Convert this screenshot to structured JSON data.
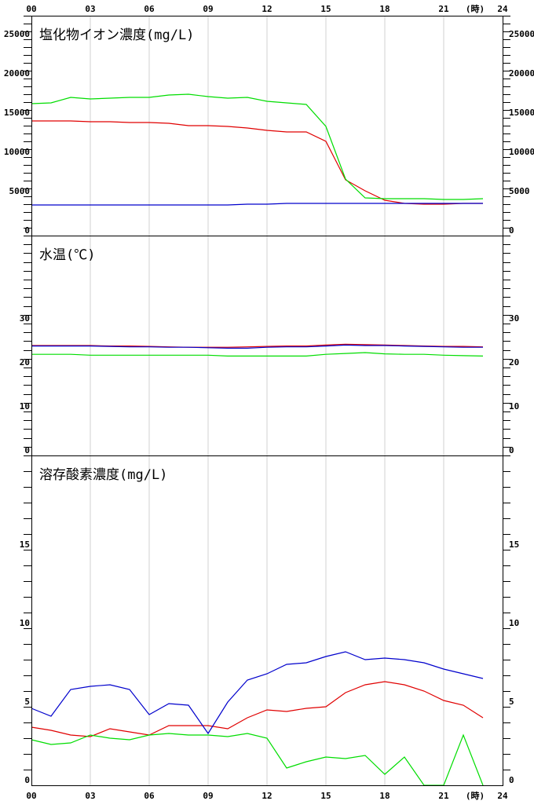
{
  "x_axis": {
    "ticks": [
      "00",
      "03",
      "06",
      "09",
      "12",
      "15",
      "18",
      "21",
      "24"
    ],
    "unit": "(時)"
  },
  "colors": {
    "red": "#e00000",
    "green": "#00dd00",
    "blue": "#0000cc",
    "grid": "#d0d0d0"
  },
  "chart_data": [
    {
      "type": "line",
      "title": "塩化物イオン濃度(mg/L)",
      "xlabel": "(時)",
      "ylim": [
        0,
        28000
      ],
      "yticks": [
        0,
        5000,
        10000,
        15000,
        20000,
        25000
      ],
      "x": [
        0,
        1,
        2,
        3,
        4,
        5,
        6,
        7,
        8,
        9,
        10,
        11,
        12,
        13,
        14,
        15,
        16,
        17,
        18,
        19,
        20,
        21,
        22,
        23
      ],
      "series": [
        {
          "color": "red",
          "values": [
            14600,
            14600,
            14600,
            14500,
            14500,
            14400,
            14400,
            14300,
            14000,
            14000,
            13900,
            13700,
            13400,
            13200,
            13200,
            12000,
            7100,
            5700,
            4500,
            4100,
            4000,
            4000,
            4100,
            4100
          ]
        },
        {
          "color": "green",
          "values": [
            16800,
            16900,
            17600,
            17400,
            17500,
            17600,
            17600,
            17900,
            18000,
            17700,
            17500,
            17600,
            17100,
            16900,
            16700,
            13900,
            7200,
            4800,
            4700,
            4700,
            4700,
            4600,
            4600,
            4700
          ]
        },
        {
          "color": "blue",
          "values": [
            3900,
            3900,
            3900,
            3900,
            3900,
            3900,
            3900,
            3900,
            3900,
            3900,
            3900,
            4000,
            4000,
            4100,
            4100,
            4100,
            4100,
            4100,
            4100,
            4100,
            4100,
            4100,
            4100,
            4100
          ]
        }
      ]
    },
    {
      "type": "line",
      "title": "水温(℃)",
      "xlabel": "(時)",
      "ylim": [
        0,
        50
      ],
      "yticks": [
        0,
        10,
        20,
        30
      ],
      "x": [
        0,
        1,
        2,
        3,
        4,
        5,
        6,
        7,
        8,
        9,
        10,
        11,
        12,
        13,
        14,
        15,
        16,
        17,
        18,
        19,
        20,
        21,
        22,
        23
      ],
      "series": [
        {
          "color": "red",
          "values": [
            25.0,
            25.0,
            25.0,
            25.0,
            24.9,
            24.9,
            24.8,
            24.7,
            24.6,
            24.6,
            24.6,
            24.7,
            24.8,
            24.9,
            24.9,
            25.1,
            25.3,
            25.2,
            25.1,
            25.0,
            24.9,
            24.8,
            24.8,
            24.7
          ]
        },
        {
          "color": "green",
          "values": [
            23.0,
            23.0,
            23.0,
            22.8,
            22.8,
            22.8,
            22.8,
            22.8,
            22.8,
            22.8,
            22.6,
            22.6,
            22.6,
            22.6,
            22.6,
            23.0,
            23.2,
            23.4,
            23.1,
            23.0,
            23.0,
            22.8,
            22.7,
            22.6
          ]
        },
        {
          "color": "blue",
          "values": [
            24.9,
            24.9,
            24.9,
            24.9,
            24.8,
            24.7,
            24.7,
            24.6,
            24.6,
            24.5,
            24.4,
            24.4,
            24.6,
            24.7,
            24.7,
            24.9,
            25.1,
            25.0,
            25.0,
            24.9,
            24.8,
            24.7,
            24.6,
            24.6
          ]
        }
      ]
    },
    {
      "type": "line",
      "title": "溶存酸素濃度(mg/L)",
      "xlabel": "(時)",
      "ylim": [
        0,
        21
      ],
      "yticks": [
        0,
        5,
        10,
        15
      ],
      "x": [
        0,
        1,
        2,
        3,
        4,
        5,
        6,
        7,
        8,
        9,
        10,
        11,
        12,
        13,
        14,
        15,
        16,
        17,
        18,
        19,
        20,
        21,
        22,
        23
      ],
      "series": [
        {
          "color": "red",
          "values": [
            3.7,
            3.5,
            3.2,
            3.1,
            3.6,
            3.4,
            3.2,
            3.8,
            3.8,
            3.8,
            3.6,
            4.3,
            4.8,
            4.7,
            4.9,
            5.0,
            5.9,
            6.4,
            6.6,
            6.4,
            6.0,
            5.4,
            5.1,
            4.3
          ]
        },
        {
          "color": "green",
          "values": [
            2.9,
            2.6,
            2.7,
            3.2,
            3.0,
            2.9,
            3.2,
            3.3,
            3.2,
            3.2,
            3.1,
            3.3,
            3.0,
            1.1,
            1.5,
            1.8,
            1.7,
            1.9,
            0.7,
            1.8,
            0.0,
            0.0,
            3.2,
            0.0
          ]
        },
        {
          "color": "blue",
          "values": [
            4.9,
            4.4,
            6.1,
            6.3,
            6.4,
            6.1,
            4.5,
            5.2,
            5.1,
            3.3,
            5.3,
            6.7,
            7.1,
            7.7,
            7.8,
            8.2,
            8.5,
            8.0,
            8.1,
            8.0,
            7.8,
            7.4,
            7.1,
            6.8
          ]
        }
      ]
    }
  ]
}
